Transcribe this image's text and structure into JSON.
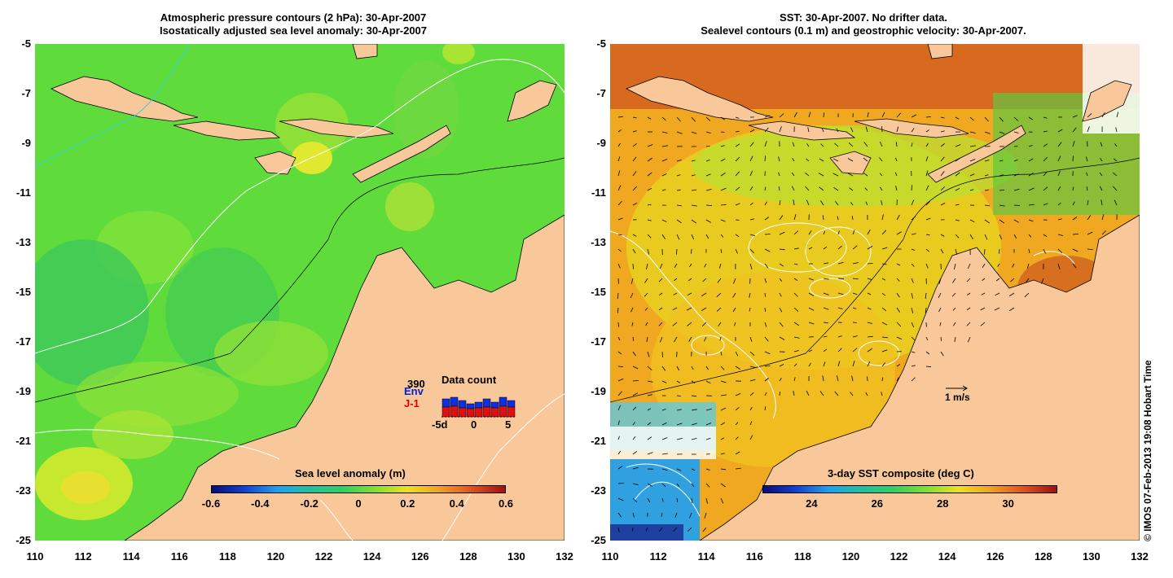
{
  "left": {
    "title_line1": "Atmospheric pressure contours (2 hPa): 30-Apr-2007",
    "title_line2": "Isostatically adjusted sea level anomaly: 30-Apr-2007",
    "colorbar": {
      "title": "Sea level anomaly (m)",
      "ticks": [
        "-0.6",
        "-0.4",
        "-0.2",
        "0",
        "0.2",
        "0.4",
        "0.6"
      ],
      "range": [
        -0.6,
        0.6
      ]
    },
    "data_count": {
      "title": "Data count",
      "max_label": "390",
      "env_label": "Env",
      "j1_label": "J-1",
      "x_ticks": [
        "-5d",
        "0",
        "5"
      ]
    }
  },
  "right": {
    "title_line1": "SST: 30-Apr-2007. No drifter data.",
    "title_line2": "Sealevel contours (0.1 m) and geostrophic velocity: 30-Apr-2007.",
    "velocity_scale_label": "1 m/s",
    "colorbar": {
      "title": "3-day SST composite (deg C)",
      "ticks": [
        "24",
        "26",
        "28",
        "30"
      ],
      "range": [
        22.5,
        31.5
      ]
    }
  },
  "axes": {
    "y_ticks": [
      "-5",
      "-7",
      "-9",
      "-11",
      "-13",
      "-15",
      "-17",
      "-19",
      "-21",
      "-23",
      "-25"
    ],
    "x_ticks": [
      "110",
      "112",
      "114",
      "116",
      "118",
      "120",
      "122",
      "124",
      "126",
      "128",
      "130",
      "132"
    ],
    "lon_range": [
      110,
      132
    ],
    "lat_range": [
      -25,
      -5
    ]
  },
  "credit": "© IMOS 07-Feb-2013 19:08 Hobart Time",
  "colors": {
    "land": "#f9c89a",
    "ocean_left": "#5fdc3c",
    "ocean_right": "#f0a820",
    "white_contour": "#ffffff",
    "cyan_contour": "#30d0e0"
  }
}
